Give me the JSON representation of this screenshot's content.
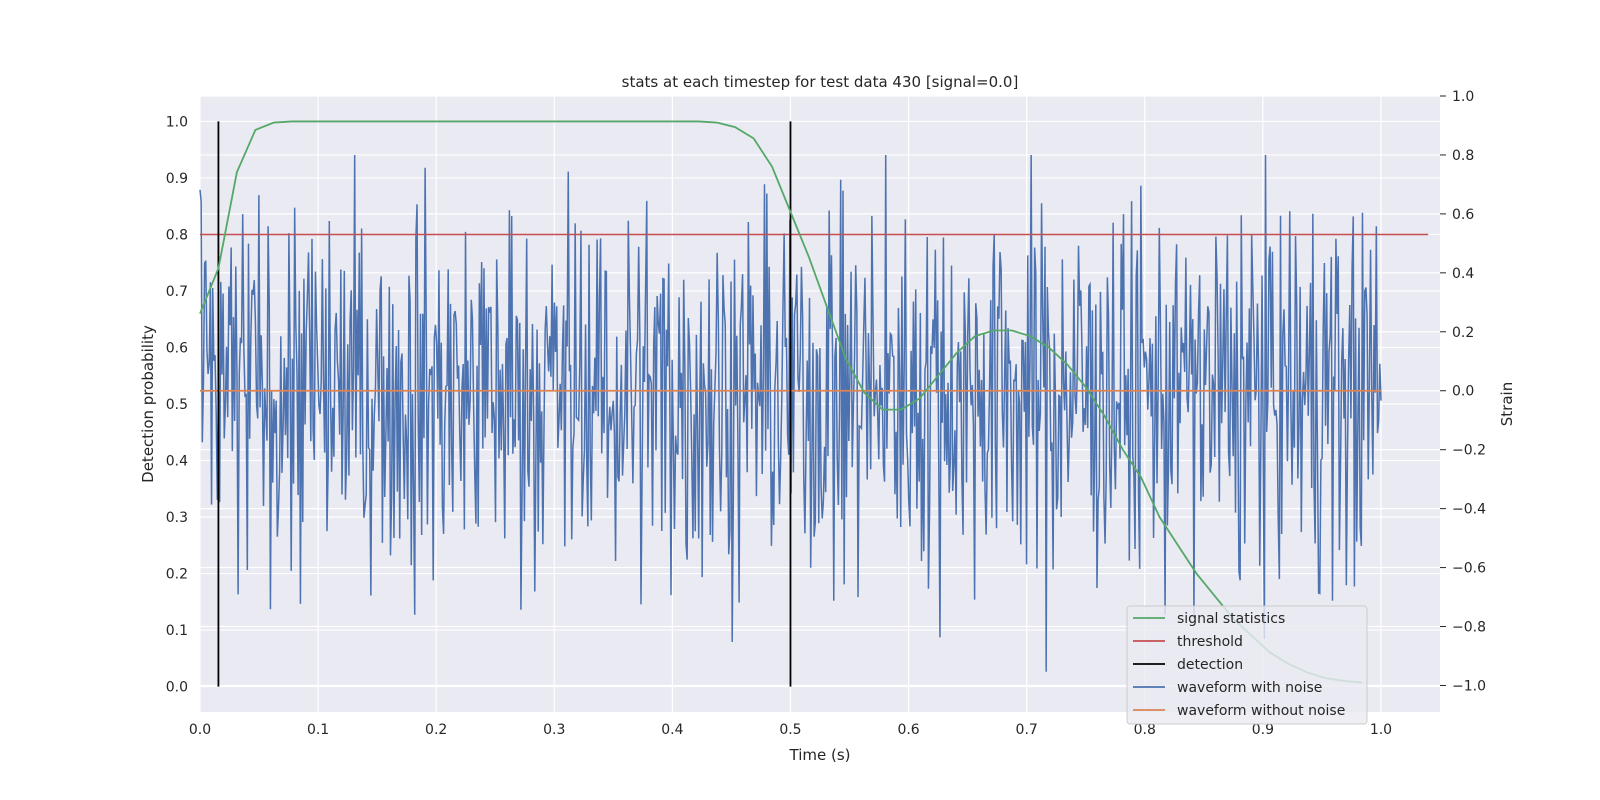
{
  "colors": {
    "background": "#eaeaf2",
    "grid": "#ffffff",
    "signal": "#55a868",
    "threshold": "#c44e52",
    "detection": "#000000",
    "noisy": "#4c72b0",
    "clean": "#dd8452"
  },
  "chart_data": {
    "type": "line",
    "title": "stats at each timestep for test data 430 [signal=0.0]",
    "xlabel": "Time (s)",
    "ylabel_left": "Detection probability",
    "ylabel_right": "Strain",
    "xlim": [
      0.0,
      1.05
    ],
    "ylim_left": [
      -0.045,
      1.045
    ],
    "ylim_right": [
      -1.09,
      1.0
    ],
    "x_ticks": [
      0.0,
      0.1,
      0.2,
      0.3,
      0.4,
      0.5,
      0.6,
      0.7,
      0.8,
      0.9,
      1.0
    ],
    "y_ticks_left": [
      0.0,
      0.1,
      0.2,
      0.3,
      0.4,
      0.5,
      0.6,
      0.7,
      0.8,
      0.9,
      1.0
    ],
    "y_ticks_right": [
      1.0,
      0.8,
      0.6,
      0.4,
      0.2,
      0.0,
      -0.2,
      -0.4,
      -0.6,
      -0.8,
      -1.0
    ],
    "grid": true,
    "legend_position": "lower-right",
    "legend": [
      "signal statistics",
      "threshold",
      "detection",
      "waveform with noise",
      "waveform without noise"
    ],
    "series": [
      {
        "name": "signal statistics",
        "axis": "left",
        "x": [
          0.0,
          0.0156,
          0.0312,
          0.0469,
          0.0625,
          0.0781,
          0.0938,
          0.1094,
          0.125,
          0.1406,
          0.1562,
          0.1719,
          0.1875,
          0.2031,
          0.2188,
          0.2344,
          0.25,
          0.2656,
          0.2812,
          0.2969,
          0.3125,
          0.3281,
          0.3438,
          0.3594,
          0.375,
          0.3906,
          0.4062,
          0.4219,
          0.4375,
          0.4531,
          0.4688,
          0.4844,
          0.5,
          0.5156,
          0.5312,
          0.5469,
          0.5625,
          0.5781,
          0.5938,
          0.6094,
          0.625,
          0.6406,
          0.6562,
          0.6719,
          0.6875,
          0.7031,
          0.7188,
          0.7344,
          0.75,
          0.7656,
          0.7812,
          0.7969,
          0.8125,
          0.8281,
          0.8438,
          0.8594,
          0.875,
          0.8906,
          0.9062,
          0.9219,
          0.9375,
          0.9531,
          0.9688,
          0.9844
        ],
        "values": [
          0.66,
          0.74,
          0.91,
          0.985,
          0.998,
          1.0,
          1.0,
          1.0,
          1.0,
          1.0,
          1.0,
          1.0,
          1.0,
          1.0,
          1.0,
          1.0,
          1.0,
          1.0,
          1.0,
          1.0,
          1.0,
          1.0,
          1.0,
          1.0,
          1.0,
          1.0,
          1.0,
          1.0,
          0.998,
          0.99,
          0.97,
          0.92,
          0.84,
          0.76,
          0.67,
          0.58,
          0.52,
          0.49,
          0.49,
          0.51,
          0.55,
          0.59,
          0.62,
          0.63,
          0.63,
          0.62,
          0.6,
          0.57,
          0.53,
          0.48,
          0.42,
          0.37,
          0.3,
          0.25,
          0.2,
          0.16,
          0.12,
          0.09,
          0.06,
          0.04,
          0.025,
          0.015,
          0.01,
          0.007
        ]
      },
      {
        "name": "threshold",
        "axis": "left",
        "x": [
          0.0,
          1.04
        ],
        "values": [
          0.8,
          0.8
        ]
      },
      {
        "name": "detection",
        "axis": "left",
        "x": [
          0.0156,
          0.5
        ],
        "values": [
          1.0,
          1.0
        ]
      },
      {
        "name": "waveform with noise",
        "axis": "right",
        "x_start": 0.0,
        "x_end": 1.0,
        "amplitude_range": [
          -1.0,
          0.8
        ]
      },
      {
        "name": "waveform without noise",
        "axis": "right",
        "x": [
          0.0,
          1.0
        ],
        "values": [
          0.0,
          0.0
        ]
      }
    ]
  }
}
